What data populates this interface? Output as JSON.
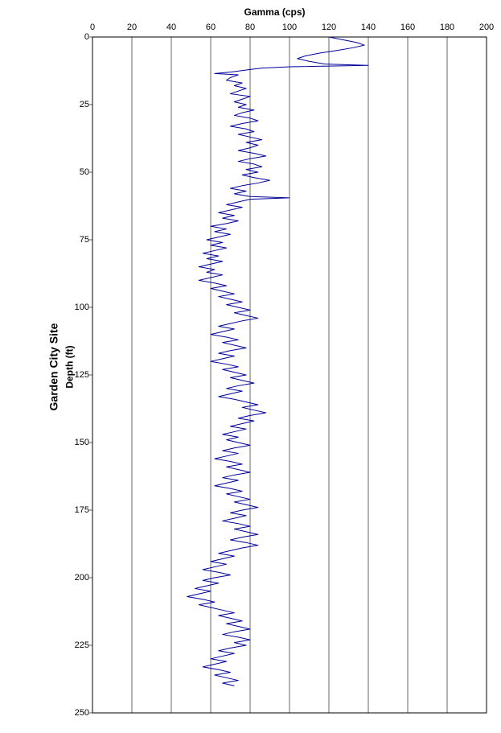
{
  "site_title": "Garden City Site",
  "chart": {
    "type": "line",
    "x_axis_label": "Gamma (cps)",
    "y_axis_label": "Depth (ft)",
    "x_axis_position": "top",
    "y_axis_inverted": true,
    "xlim": [
      0,
      200
    ],
    "ylim": [
      0,
      250
    ],
    "xtick_step": 20,
    "ytick_step": 25,
    "xticks": [
      0,
      20,
      40,
      60,
      80,
      100,
      120,
      140,
      160,
      180,
      200
    ],
    "yticks": [
      0,
      25,
      50,
      75,
      100,
      125,
      150,
      175,
      200,
      225,
      250
    ],
    "title_fontsize": 14,
    "label_fontsize": 12,
    "tick_fontsize": 11,
    "background_color": "#ffffff",
    "grid_color": "#000000",
    "grid_linewidth": 0.6,
    "border_color": "#000000",
    "line_color": "#000099",
    "line_width": 1,
    "series": [
      {
        "d": 0,
        "g": 120
      },
      {
        "d": 1,
        "g": 127
      },
      {
        "d": 2,
        "g": 134
      },
      {
        "d": 3,
        "g": 138
      },
      {
        "d": 4,
        "g": 132
      },
      {
        "d": 5,
        "g": 124
      },
      {
        "d": 6,
        "g": 115
      },
      {
        "d": 7,
        "g": 108
      },
      {
        "d": 8,
        "g": 104
      },
      {
        "d": 9,
        "g": 110
      },
      {
        "d": 10,
        "g": 118
      },
      {
        "d": 10.5,
        "g": 140
      },
      {
        "d": 11,
        "g": 100
      },
      {
        "d": 11.5,
        "g": 86
      },
      {
        "d": 12,
        "g": 80
      },
      {
        "d": 13,
        "g": 70
      },
      {
        "d": 13.5,
        "g": 62
      },
      {
        "d": 14,
        "g": 74
      },
      {
        "d": 15,
        "g": 70
      },
      {
        "d": 16,
        "g": 68
      },
      {
        "d": 17,
        "g": 76
      },
      {
        "d": 18,
        "g": 72
      },
      {
        "d": 19,
        "g": 78
      },
      {
        "d": 20,
        "g": 74
      },
      {
        "d": 21,
        "g": 70
      },
      {
        "d": 22,
        "g": 80
      },
      {
        "d": 23,
        "g": 76
      },
      {
        "d": 24,
        "g": 72
      },
      {
        "d": 25,
        "g": 78
      },
      {
        "d": 26,
        "g": 74
      },
      {
        "d": 27,
        "g": 82
      },
      {
        "d": 28,
        "g": 76
      },
      {
        "d": 29,
        "g": 72
      },
      {
        "d": 30,
        "g": 80
      },
      {
        "d": 31,
        "g": 84
      },
      {
        "d": 32,
        "g": 76
      },
      {
        "d": 33,
        "g": 70
      },
      {
        "d": 34,
        "g": 78
      },
      {
        "d": 35,
        "g": 82
      },
      {
        "d": 36,
        "g": 74
      },
      {
        "d": 37,
        "g": 80
      },
      {
        "d": 38,
        "g": 86
      },
      {
        "d": 39,
        "g": 78
      },
      {
        "d": 40,
        "g": 84
      },
      {
        "d": 41,
        "g": 80
      },
      {
        "d": 42,
        "g": 74
      },
      {
        "d": 43,
        "g": 82
      },
      {
        "d": 44,
        "g": 88
      },
      {
        "d": 45,
        "g": 80
      },
      {
        "d": 46,
        "g": 74
      },
      {
        "d": 47,
        "g": 82
      },
      {
        "d": 48,
        "g": 86
      },
      {
        "d": 49,
        "g": 78
      },
      {
        "d": 50,
        "g": 84
      },
      {
        "d": 51,
        "g": 76
      },
      {
        "d": 52,
        "g": 82
      },
      {
        "d": 53,
        "g": 90
      },
      {
        "d": 54,
        "g": 84
      },
      {
        "d": 55,
        "g": 76
      },
      {
        "d": 56,
        "g": 70
      },
      {
        "d": 57,
        "g": 78
      },
      {
        "d": 58,
        "g": 72
      },
      {
        "d": 59,
        "g": 80
      },
      {
        "d": 59.5,
        "g": 100
      },
      {
        "d": 60,
        "g": 80
      },
      {
        "d": 61,
        "g": 74
      },
      {
        "d": 62,
        "g": 68
      },
      {
        "d": 63,
        "g": 76
      },
      {
        "d": 64,
        "g": 70
      },
      {
        "d": 65,
        "g": 64
      },
      {
        "d": 66,
        "g": 72
      },
      {
        "d": 67,
        "g": 66
      },
      {
        "d": 68,
        "g": 74
      },
      {
        "d": 69,
        "g": 68
      },
      {
        "d": 70,
        "g": 60
      },
      {
        "d": 71,
        "g": 68
      },
      {
        "d": 72,
        "g": 62
      },
      {
        "d": 73,
        "g": 70
      },
      {
        "d": 74,
        "g": 64
      },
      {
        "d": 75,
        "g": 58
      },
      {
        "d": 76,
        "g": 66
      },
      {
        "d": 77,
        "g": 60
      },
      {
        "d": 78,
        "g": 68
      },
      {
        "d": 79,
        "g": 62
      },
      {
        "d": 80,
        "g": 56
      },
      {
        "d": 81,
        "g": 64
      },
      {
        "d": 82,
        "g": 58
      },
      {
        "d": 83,
        "g": 66
      },
      {
        "d": 84,
        "g": 60
      },
      {
        "d": 85,
        "g": 54
      },
      {
        "d": 86,
        "g": 62
      },
      {
        "d": 87,
        "g": 58
      },
      {
        "d": 88,
        "g": 66
      },
      {
        "d": 89,
        "g": 60
      },
      {
        "d": 90,
        "g": 54
      },
      {
        "d": 91,
        "g": 62
      },
      {
        "d": 92,
        "g": 68
      },
      {
        "d": 93,
        "g": 60
      },
      {
        "d": 94,
        "g": 66
      },
      {
        "d": 95,
        "g": 72
      },
      {
        "d": 96,
        "g": 64
      },
      {
        "d": 97,
        "g": 70
      },
      {
        "d": 98,
        "g": 76
      },
      {
        "d": 99,
        "g": 68
      },
      {
        "d": 100,
        "g": 74
      },
      {
        "d": 101,
        "g": 80
      },
      {
        "d": 102,
        "g": 72
      },
      {
        "d": 103,
        "g": 78
      },
      {
        "d": 104,
        "g": 84
      },
      {
        "d": 105,
        "g": 76
      },
      {
        "d": 106,
        "g": 70
      },
      {
        "d": 107,
        "g": 64
      },
      {
        "d": 108,
        "g": 72
      },
      {
        "d": 109,
        "g": 66
      },
      {
        "d": 110,
        "g": 60
      },
      {
        "d": 111,
        "g": 68
      },
      {
        "d": 112,
        "g": 74
      },
      {
        "d": 113,
        "g": 66
      },
      {
        "d": 114,
        "g": 72
      },
      {
        "d": 115,
        "g": 78
      },
      {
        "d": 116,
        "g": 70
      },
      {
        "d": 117,
        "g": 64
      },
      {
        "d": 118,
        "g": 72
      },
      {
        "d": 119,
        "g": 66
      },
      {
        "d": 120,
        "g": 60
      },
      {
        "d": 121,
        "g": 68
      },
      {
        "d": 122,
        "g": 74
      },
      {
        "d": 123,
        "g": 66
      },
      {
        "d": 124,
        "g": 72
      },
      {
        "d": 125,
        "g": 78
      },
      {
        "d": 126,
        "g": 70
      },
      {
        "d": 127,
        "g": 76
      },
      {
        "d": 128,
        "g": 82
      },
      {
        "d": 129,
        "g": 74
      },
      {
        "d": 130,
        "g": 68
      },
      {
        "d": 131,
        "g": 76
      },
      {
        "d": 132,
        "g": 70
      },
      {
        "d": 133,
        "g": 64
      },
      {
        "d": 134,
        "g": 72
      },
      {
        "d": 135,
        "g": 78
      },
      {
        "d": 136,
        "g": 84
      },
      {
        "d": 137,
        "g": 76
      },
      {
        "d": 138,
        "g": 82
      },
      {
        "d": 139,
        "g": 88
      },
      {
        "d": 140,
        "g": 80
      },
      {
        "d": 141,
        "g": 74
      },
      {
        "d": 142,
        "g": 82
      },
      {
        "d": 143,
        "g": 76
      },
      {
        "d": 144,
        "g": 70
      },
      {
        "d": 145,
        "g": 78
      },
      {
        "d": 146,
        "g": 72
      },
      {
        "d": 147,
        "g": 66
      },
      {
        "d": 148,
        "g": 74
      },
      {
        "d": 149,
        "g": 68
      },
      {
        "d": 150,
        "g": 74
      },
      {
        "d": 151,
        "g": 80
      },
      {
        "d": 152,
        "g": 72
      },
      {
        "d": 153,
        "g": 66
      },
      {
        "d": 154,
        "g": 74
      },
      {
        "d": 155,
        "g": 68
      },
      {
        "d": 156,
        "g": 62
      },
      {
        "d": 157,
        "g": 70
      },
      {
        "d": 158,
        "g": 76
      },
      {
        "d": 159,
        "g": 68
      },
      {
        "d": 160,
        "g": 74
      },
      {
        "d": 161,
        "g": 80
      },
      {
        "d": 162,
        "g": 72
      },
      {
        "d": 163,
        "g": 66
      },
      {
        "d": 164,
        "g": 74
      },
      {
        "d": 165,
        "g": 68
      },
      {
        "d": 166,
        "g": 62
      },
      {
        "d": 167,
        "g": 70
      },
      {
        "d": 168,
        "g": 76
      },
      {
        "d": 169,
        "g": 68
      },
      {
        "d": 170,
        "g": 74
      },
      {
        "d": 171,
        "g": 80
      },
      {
        "d": 172,
        "g": 72
      },
      {
        "d": 173,
        "g": 78
      },
      {
        "d": 174,
        "g": 84
      },
      {
        "d": 175,
        "g": 76
      },
      {
        "d": 176,
        "g": 70
      },
      {
        "d": 177,
        "g": 78
      },
      {
        "d": 178,
        "g": 72
      },
      {
        "d": 179,
        "g": 66
      },
      {
        "d": 180,
        "g": 74
      },
      {
        "d": 181,
        "g": 80
      },
      {
        "d": 182,
        "g": 72
      },
      {
        "d": 183,
        "g": 78
      },
      {
        "d": 184,
        "g": 84
      },
      {
        "d": 185,
        "g": 76
      },
      {
        "d": 186,
        "g": 70
      },
      {
        "d": 187,
        "g": 78
      },
      {
        "d": 188,
        "g": 84
      },
      {
        "d": 189,
        "g": 76
      },
      {
        "d": 190,
        "g": 70
      },
      {
        "d": 191,
        "g": 64
      },
      {
        "d": 192,
        "g": 72
      },
      {
        "d": 193,
        "g": 66
      },
      {
        "d": 194,
        "g": 60
      },
      {
        "d": 195,
        "g": 68
      },
      {
        "d": 196,
        "g": 62
      },
      {
        "d": 197,
        "g": 56
      },
      {
        "d": 198,
        "g": 64
      },
      {
        "d": 199,
        "g": 70
      },
      {
        "d": 200,
        "g": 62
      },
      {
        "d": 201,
        "g": 56
      },
      {
        "d": 202,
        "g": 64
      },
      {
        "d": 203,
        "g": 58
      },
      {
        "d": 204,
        "g": 52
      },
      {
        "d": 205,
        "g": 60
      },
      {
        "d": 206,
        "g": 54
      },
      {
        "d": 207,
        "g": 48
      },
      {
        "d": 208,
        "g": 56
      },
      {
        "d": 209,
        "g": 62
      },
      {
        "d": 210,
        "g": 54
      },
      {
        "d": 211,
        "g": 60
      },
      {
        "d": 212,
        "g": 66
      },
      {
        "d": 213,
        "g": 72
      },
      {
        "d": 214,
        "g": 64
      },
      {
        "d": 215,
        "g": 70
      },
      {
        "d": 216,
        "g": 76
      },
      {
        "d": 217,
        "g": 68
      },
      {
        "d": 218,
        "g": 74
      },
      {
        "d": 219,
        "g": 80
      },
      {
        "d": 220,
        "g": 72
      },
      {
        "d": 221,
        "g": 66
      },
      {
        "d": 222,
        "g": 74
      },
      {
        "d": 223,
        "g": 80
      },
      {
        "d": 224,
        "g": 72
      },
      {
        "d": 225,
        "g": 78
      },
      {
        "d": 226,
        "g": 70
      },
      {
        "d": 227,
        "g": 64
      },
      {
        "d": 228,
        "g": 72
      },
      {
        "d": 229,
        "g": 66
      },
      {
        "d": 230,
        "g": 60
      },
      {
        "d": 231,
        "g": 68
      },
      {
        "d": 232,
        "g": 62
      },
      {
        "d": 233,
        "g": 56
      },
      {
        "d": 234,
        "g": 64
      },
      {
        "d": 235,
        "g": 70
      },
      {
        "d": 236,
        "g": 62
      },
      {
        "d": 237,
        "g": 68
      },
      {
        "d": 238,
        "g": 74
      },
      {
        "d": 239,
        "g": 66
      },
      {
        "d": 240,
        "g": 72
      }
    ]
  }
}
